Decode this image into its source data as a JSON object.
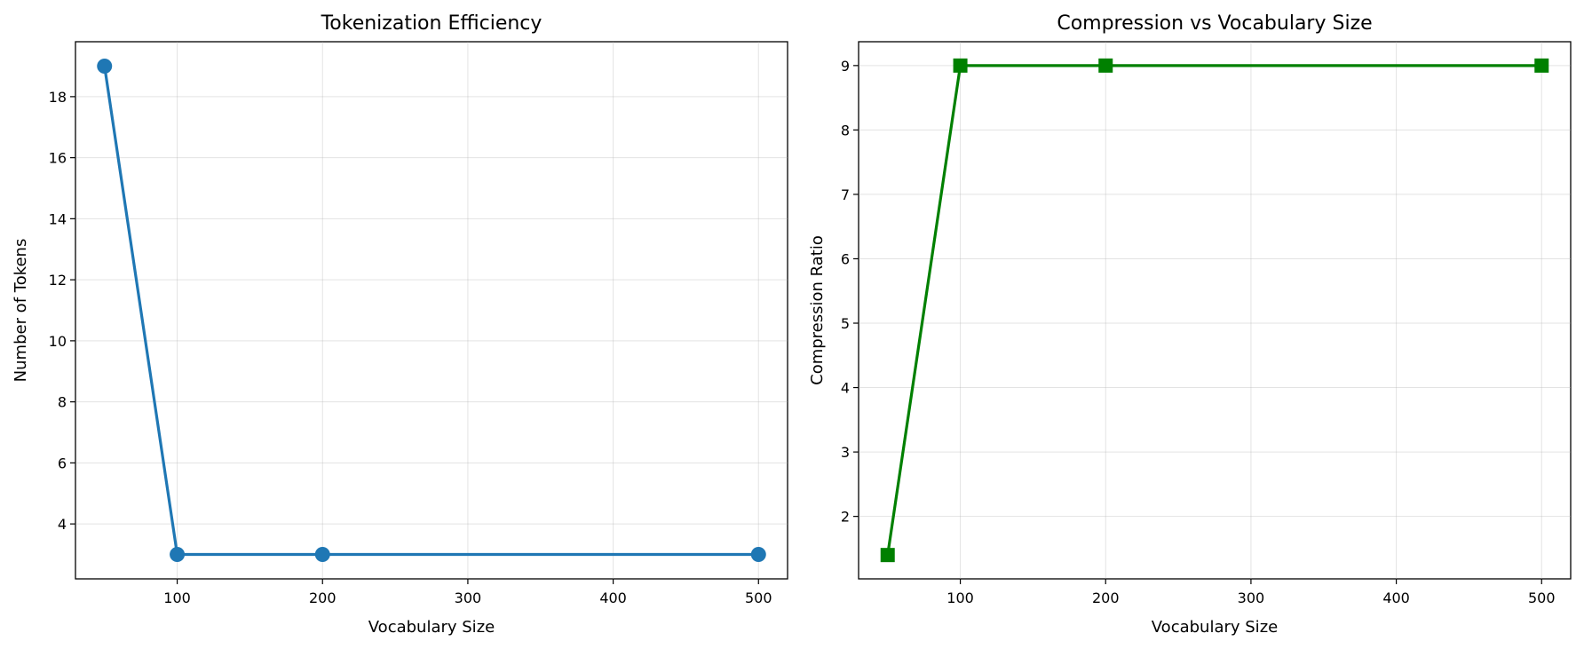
{
  "chart_data": [
    {
      "type": "line",
      "title": "Tokenization Efficiency",
      "xlabel": "Vocabulary Size",
      "ylabel": "Number of Tokens",
      "x": [
        50,
        100,
        200,
        500
      ],
      "series": [
        {
          "values": [
            19,
            3,
            3,
            3
          ],
          "color": "#1f77b4",
          "marker": "circle"
        }
      ],
      "xlim": [
        30,
        520
      ],
      "ylim": [
        2.2,
        19.8
      ],
      "xticks": [
        100,
        200,
        300,
        400,
        500
      ],
      "yticks": [
        4,
        6,
        8,
        10,
        12,
        14,
        16,
        18
      ],
      "grid": true
    },
    {
      "type": "line",
      "title": "Compression vs Vocabulary Size",
      "xlabel": "Vocabulary Size",
      "ylabel": "Compression Ratio",
      "x": [
        50,
        100,
        200,
        500
      ],
      "series": [
        {
          "values": [
            1.4,
            9,
            9,
            9
          ],
          "color": "#008000",
          "marker": "square"
        }
      ],
      "xlim": [
        30,
        520
      ],
      "ylim": [
        1.03,
        9.37
      ],
      "xticks": [
        100,
        200,
        300,
        400,
        500
      ],
      "yticks": [
        2,
        3,
        4,
        5,
        6,
        7,
        8,
        9
      ],
      "grid": true
    }
  ]
}
